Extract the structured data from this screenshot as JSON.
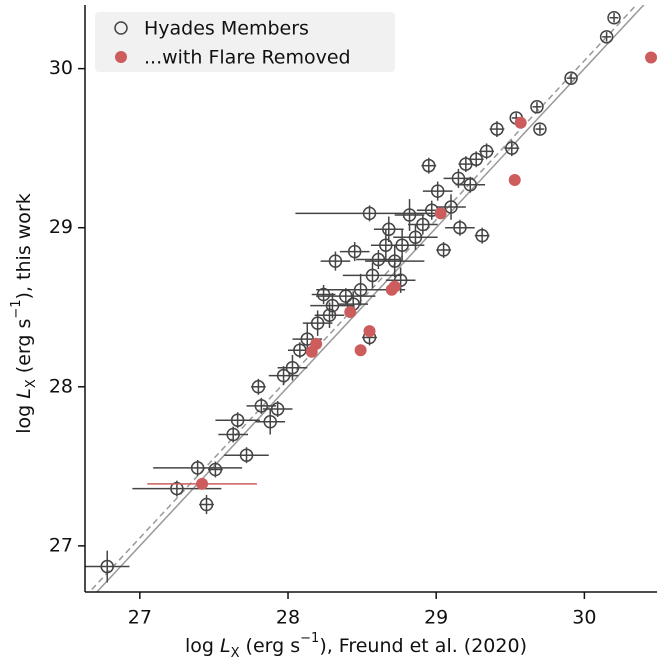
{
  "chart_data": {
    "type": "scatter",
    "xlabel": [
      {
        "text": "log ",
        "style": "normal"
      },
      {
        "text": "L",
        "style": "italic"
      },
      {
        "text": "X",
        "style": "sub"
      },
      {
        "text": " (erg s",
        "style": "normal"
      },
      {
        "text": "−1",
        "style": "sup"
      },
      {
        "text": "), Freund et al. (2020)",
        "style": "normal"
      }
    ],
    "ylabel": [
      {
        "text": "log ",
        "style": "normal"
      },
      {
        "text": "L",
        "style": "italic"
      },
      {
        "text": "X",
        "style": "sub"
      },
      {
        "text": " (erg s",
        "style": "normal"
      },
      {
        "text": "−1",
        "style": "sup"
      },
      {
        "text": "), this work",
        "style": "normal"
      }
    ],
    "xlim": [
      26.63,
      30.49
    ],
    "ylim": [
      26.71,
      30.4
    ],
    "xticks": [
      27,
      28,
      29,
      30
    ],
    "yticks": [
      27,
      28,
      29,
      30
    ],
    "legend": "upper left",
    "reference_lines": [
      {
        "slope": 1,
        "intercept": 0,
        "style": "solid",
        "color": "#999999"
      },
      {
        "slope": 1,
        "intercept": 0.05,
        "style": "dashed",
        "color": "#999999"
      }
    ],
    "series": [
      {
        "name": "Hyades Members",
        "color": "#444444",
        "marker": "open",
        "x": [
          26.78,
          27.25,
          27.39,
          27.45,
          27.51,
          27.63,
          27.66,
          27.72,
          27.8,
          27.82,
          27.88,
          27.93,
          27.97,
          28.03,
          28.08,
          28.13,
          28.2,
          28.24,
          28.3,
          28.32,
          28.39,
          28.45,
          28.49,
          28.55,
          28.57,
          28.61,
          28.66,
          28.68,
          28.72,
          28.77,
          28.82,
          28.86,
          28.91,
          28.95,
          28.97,
          29.01,
          29.05,
          29.1,
          29.15,
          29.2,
          29.23,
          29.27,
          29.31,
          29.34,
          29.41,
          29.51,
          29.54,
          29.68,
          29.7,
          29.91,
          30.15,
          30.2,
          28.55,
          29.16,
          28.76,
          28.28,
          28.44
        ],
        "values": [
          26.87,
          27.36,
          27.49,
          27.26,
          27.48,
          27.7,
          27.79,
          27.57,
          28,
          27.88,
          27.78,
          27.86,
          28.07,
          28.12,
          28.23,
          28.3,
          28.4,
          28.58,
          28.51,
          28.79,
          28.57,
          28.85,
          28.61,
          29.09,
          28.7,
          28.8,
          28.89,
          28.99,
          28.79,
          28.89,
          29.08,
          28.94,
          29.02,
          29.39,
          29.11,
          29.23,
          28.86,
          29.13,
          29.31,
          29.4,
          29.27,
          29.43,
          28.95,
          29.48,
          29.62,
          29.5,
          29.69,
          29.76,
          29.62,
          29.94,
          30.2,
          30.32,
          28.31,
          29,
          28.67,
          28.45,
          28.52
        ],
        "xerr": [
          0.15,
          0.3,
          0.3,
          0.05,
          0.05,
          0.1,
          0.15,
          0.15,
          0.05,
          0.1,
          0.1,
          0.1,
          0.1,
          0.1,
          0.08,
          0.1,
          0.1,
          0.08,
          0.15,
          0.1,
          0.2,
          0.1,
          0.3,
          0.5,
          0.2,
          0.15,
          0.1,
          0.1,
          0.2,
          0.15,
          0.1,
          0.15,
          0.1,
          0.05,
          0.1,
          0.1,
          0.05,
          0.1,
          0.1,
          0.05,
          0.1,
          0.05,
          0.05,
          0.05,
          0.05,
          0.05,
          0.03,
          0.03,
          0.03,
          0.03,
          0.03,
          0.03,
          0.05,
          0.1,
          0.1,
          0.1,
          0.1
        ],
        "yerr": [
          0.1,
          0.05,
          0.05,
          0.06,
          0.05,
          0.05,
          0.05,
          0.05,
          0.05,
          0.05,
          0.08,
          0.05,
          0.06,
          0.08,
          0.05,
          0.1,
          0.08,
          0.06,
          0.08,
          0.06,
          0.05,
          0.06,
          0.1,
          0.05,
          0.08,
          0.06,
          0.1,
          0.08,
          0.1,
          0.1,
          0.1,
          0.08,
          0.06,
          0.05,
          0.06,
          0.06,
          0.05,
          0.08,
          0.06,
          0.05,
          0.05,
          0.05,
          0.05,
          0.05,
          0.05,
          0.05,
          0.03,
          0.03,
          0.03,
          0.03,
          0.03,
          0.03,
          0.05,
          0.05,
          0.08,
          0.08,
          0.08
        ]
      },
      {
        "name": "...with Flare Removed",
        "color": "#cd5c5c",
        "marker": "filled",
        "x": [
          27.42,
          28.16,
          28.19,
          28.42,
          28.49,
          28.55,
          28.7,
          28.72,
          29.03,
          29.53,
          29.57,
          30.45
        ],
        "values": [
          27.39,
          28.22,
          28.27,
          28.47,
          28.23,
          28.35,
          28.61,
          28.63,
          29.09,
          29.3,
          29.66,
          30.07
        ],
        "xerr": [
          0.37,
          null,
          null,
          null,
          null,
          null,
          null,
          null,
          null,
          null,
          null,
          null
        ]
      }
    ]
  }
}
